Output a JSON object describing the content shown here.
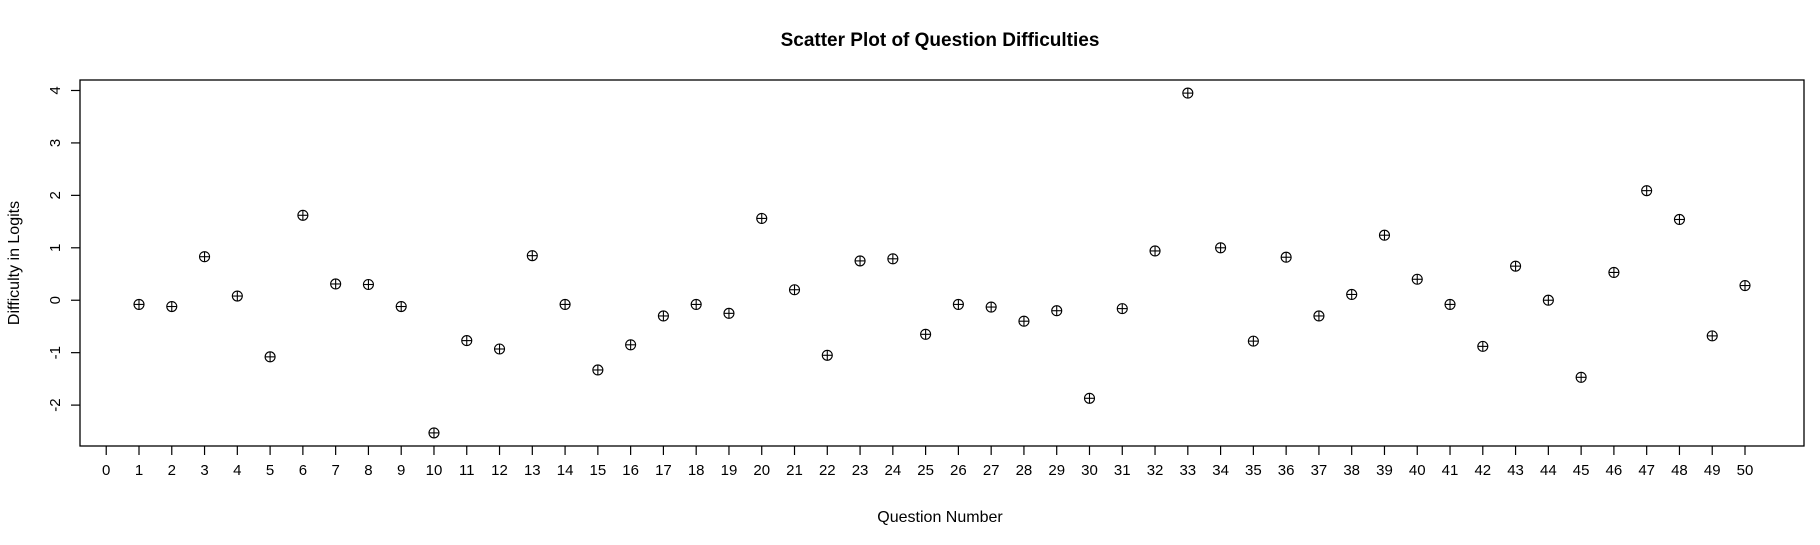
{
  "chart_data": {
    "type": "scatter",
    "title": "Scatter Plot of Question Difficulties",
    "xlabel": "Question Number",
    "ylabel": "Difficulty in Logits",
    "xlim": [
      -0.8,
      51.8
    ],
    "ylim": [
      -2.78,
      4.2
    ],
    "x_ticks": [
      0,
      1,
      2,
      3,
      4,
      5,
      6,
      7,
      8,
      9,
      10,
      11,
      12,
      13,
      14,
      15,
      16,
      17,
      18,
      19,
      20,
      21,
      22,
      23,
      24,
      25,
      26,
      27,
      28,
      29,
      30,
      31,
      32,
      33,
      34,
      35,
      36,
      37,
      38,
      39,
      40,
      41,
      42,
      43,
      44,
      45,
      46,
      47,
      48,
      49,
      50
    ],
    "y_ticks": [
      -2,
      -1,
      0,
      1,
      2,
      3,
      4
    ],
    "grid": false,
    "marker": "circle-plus",
    "x": [
      1,
      2,
      3,
      4,
      5,
      6,
      7,
      8,
      9,
      10,
      11,
      12,
      13,
      14,
      15,
      16,
      17,
      18,
      19,
      20,
      21,
      22,
      23,
      24,
      25,
      26,
      27,
      28,
      29,
      30,
      31,
      32,
      33,
      34,
      35,
      36,
      37,
      38,
      39,
      40,
      41,
      42,
      43,
      44,
      45,
      46,
      47,
      48,
      49,
      50
    ],
    "y": [
      -0.08,
      -0.12,
      0.83,
      0.08,
      -1.08,
      1.62,
      0.31,
      0.3,
      -0.12,
      -2.53,
      -0.77,
      -0.93,
      0.85,
      -0.08,
      -1.33,
      -0.85,
      -0.3,
      -0.08,
      -0.25,
      1.56,
      0.2,
      -1.05,
      0.75,
      0.79,
      -0.65,
      -0.08,
      -0.13,
      -0.4,
      -0.2,
      -1.87,
      -0.16,
      0.94,
      3.95,
      1.0,
      -0.78,
      0.82,
      -0.3,
      0.11,
      1.24,
      0.4,
      -0.08,
      -0.88,
      0.65,
      0.0,
      -1.47,
      0.53,
      2.09,
      1.54,
      -0.68,
      0.28
    ]
  }
}
